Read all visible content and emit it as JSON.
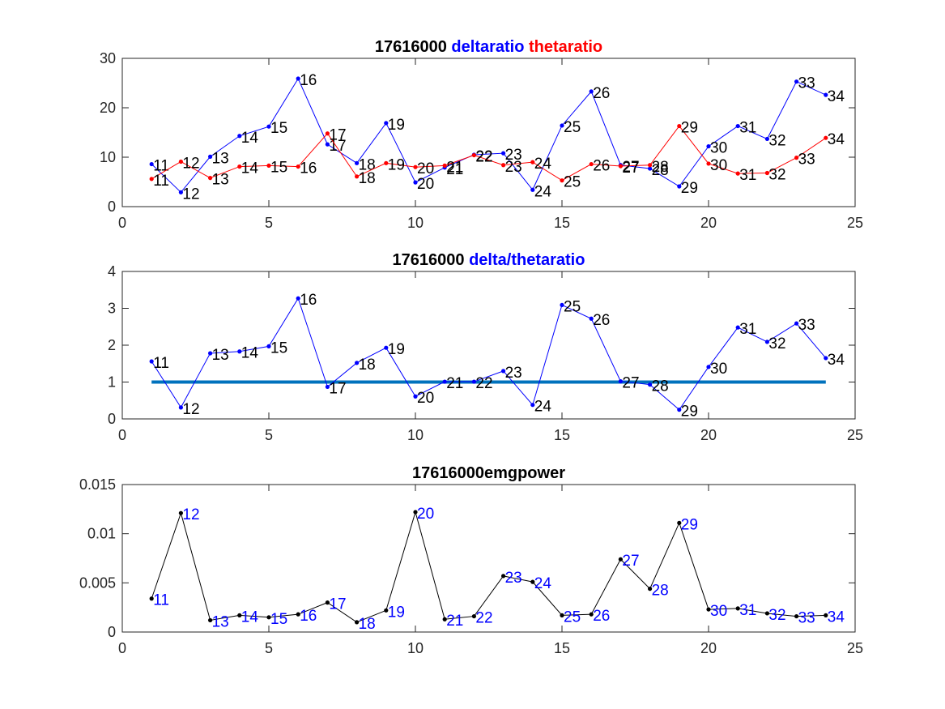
{
  "chart_data": [
    {
      "type": "line",
      "title_parts": [
        {
          "text": "17616000",
          "color": "#000000"
        },
        {
          "text": "deltaratio",
          "color": "#0000ff"
        },
        {
          "text": "thetaratio",
          "color": "#ff0000"
        }
      ],
      "xlim": [
        0,
        25
      ],
      "ylim": [
        0,
        30
      ],
      "xticks": [
        0,
        5,
        10,
        15,
        20,
        25
      ],
      "yticks": [
        0,
        10,
        20,
        30
      ],
      "x": [
        1,
        2,
        3,
        4,
        5,
        6,
        7,
        8,
        9,
        10,
        11,
        12,
        13,
        14,
        15,
        16,
        17,
        18,
        19,
        20,
        21,
        22,
        23,
        24
      ],
      "series": [
        {
          "color": "#0000ff",
          "values": [
            8.6,
            2.9,
            10.1,
            14.3,
            16.2,
            25.9,
            12.6,
            8.8,
            16.9,
            4.9,
            7.9,
            10.5,
            10.8,
            3.4,
            16.4,
            23.3,
            8.4,
            7.7,
            4.1,
            12.2,
            16.3,
            13.7,
            25.3,
            22.6
          ],
          "labels": [
            "11",
            "12",
            "13",
            "14",
            "15",
            "16",
            "17",
            "18",
            "19",
            "20",
            "21",
            "22",
            "23",
            "24",
            "25",
            "26",
            "27",
            "28",
            "29",
            "30",
            "31",
            "32",
            "33",
            "34"
          ],
          "label_color": "#000000"
        },
        {
          "color": "#ff0000",
          "values": [
            5.6,
            9.1,
            5.8,
            8.1,
            8.3,
            8.1,
            14.8,
            6.1,
            8.8,
            8.0,
            8.3,
            10.4,
            8.4,
            9.0,
            5.3,
            8.6,
            8.2,
            8.4,
            16.3,
            8.7,
            6.7,
            6.8,
            9.9,
            13.9
          ],
          "labels": [
            "11",
            "12",
            "13",
            "14",
            "15",
            "16",
            "17",
            "18",
            "19",
            "20",
            "21",
            "22",
            "23",
            "24",
            "25",
            "26",
            "27",
            "28",
            "29",
            "30",
            "31",
            "32",
            "33",
            "34"
          ],
          "label_color": "#000000"
        }
      ]
    },
    {
      "type": "line",
      "title_parts": [
        {
          "text": "17616000",
          "color": "#000000"
        },
        {
          "text": "delta/thetaratio",
          "color": "#0000ff"
        }
      ],
      "xlim": [
        0,
        25
      ],
      "ylim": [
        0,
        4
      ],
      "xticks": [
        0,
        5,
        10,
        15,
        20,
        25
      ],
      "yticks": [
        0,
        1,
        2,
        3,
        4
      ],
      "x": [
        1,
        2,
        3,
        4,
        5,
        6,
        7,
        8,
        9,
        10,
        11,
        12,
        13,
        14,
        15,
        16,
        17,
        18,
        19,
        20,
        21,
        22,
        23,
        24
      ],
      "reference_line": {
        "y": 1,
        "x_from": 1,
        "x_to": 24,
        "color": "#0072bd"
      },
      "series": [
        {
          "color": "#0000ff",
          "values": [
            1.56,
            0.31,
            1.78,
            1.83,
            1.97,
            3.27,
            0.87,
            1.52,
            1.93,
            0.61,
            1.01,
            1.01,
            1.3,
            0.38,
            3.09,
            2.72,
            1.02,
            0.93,
            0.25,
            1.41,
            2.48,
            2.09,
            2.59,
            1.65
          ],
          "labels": [
            "11",
            "12",
            "13",
            "14",
            "15",
            "16",
            "17",
            "18",
            "19",
            "20",
            "21",
            "22",
            "23",
            "24",
            "25",
            "26",
            "27",
            "28",
            "29",
            "30",
            "31",
            "32",
            "33",
            "34"
          ],
          "label_color": "#000000"
        }
      ]
    },
    {
      "type": "line",
      "title_parts": [
        {
          "text": "17616000emgpower",
          "color": "#000000"
        }
      ],
      "xlim": [
        0,
        25
      ],
      "ylim": [
        0,
        0.015
      ],
      "xticks": [
        0,
        5,
        10,
        15,
        20,
        25
      ],
      "yticks": [
        0,
        0.005,
        0.01,
        0.015
      ],
      "ytick_labels": [
        "0",
        "0.005",
        "0.01",
        "0.015"
      ],
      "x": [
        1,
        2,
        3,
        4,
        5,
        6,
        7,
        8,
        9,
        10,
        11,
        12,
        13,
        14,
        15,
        16,
        17,
        18,
        19,
        20,
        21,
        22,
        23,
        24
      ],
      "series": [
        {
          "color": "#000000",
          "values": [
            0.0034,
            0.0121,
            0.0012,
            0.0017,
            0.0015,
            0.0018,
            0.003,
            0.001,
            0.0022,
            0.0122,
            0.0013,
            0.0016,
            0.0057,
            0.0051,
            0.0017,
            0.0018,
            0.0074,
            0.0044,
            0.0111,
            0.0023,
            0.0024,
            0.0019,
            0.0016,
            0.0017
          ],
          "labels": [
            "11",
            "12",
            "13",
            "14",
            "15",
            "16",
            "17",
            "18",
            "19",
            "20",
            "21",
            "22",
            "23",
            "24",
            "25",
            "26",
            "27",
            "28",
            "29",
            "30",
            "31",
            "32",
            "33",
            "34"
          ],
          "label_color": "#0000ff"
        }
      ]
    }
  ]
}
